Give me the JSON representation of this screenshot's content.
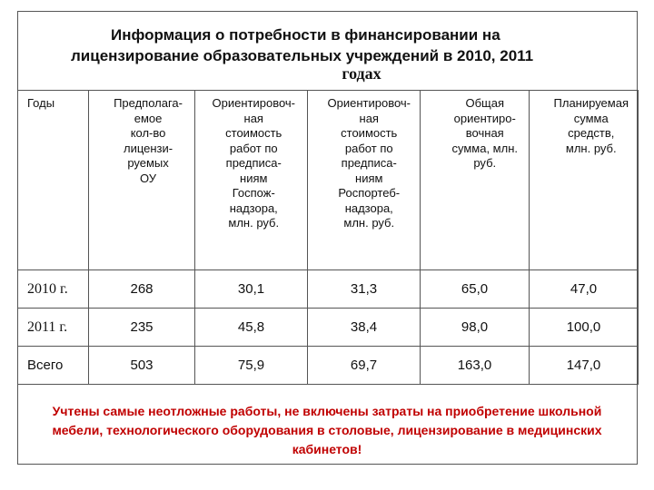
{
  "title": {
    "line1": "Информация о потребности в финансировании на",
    "line2": "лицензирование образовательных учреждений в 2010, 2011",
    "line3": "годах"
  },
  "table": {
    "headers": [
      "Годы",
      "Предполага-\nемое\nкол-во\nлицензи-\nруемых\nОУ",
      "Ориентировоч-\nная\nстоимость\nработ по\nпредписа-\nниям\nГоспож-\nнадзора,\nмлн. руб.",
      "Ориентировоч-\nная\nстоимость\nработ по\nпредписа-\nниям\nРоспортеб-\nнадзора,\nмлн. руб.",
      "Общая\nориентиро-\nвочная\nсумма, млн.\nруб.",
      "Планируемая\nсумма\nсредств,\nмлн. руб."
    ],
    "rows": [
      [
        "2010 г.",
        "268",
        "30,1",
        "31,3",
        "65,0",
        "47,0"
      ],
      [
        "2011 г.",
        "235",
        "45,8",
        "38,4",
        "98,0",
        "100,0"
      ],
      [
        "Всего",
        "503",
        "75,9",
        "69,7",
        "163,0",
        "147,0"
      ]
    ]
  },
  "note": "Учтены самые неотложные работы, не включены затраты на приобретение школьной мебели, технологического оборудования в столовые, лицензирование в медицинских кабинетов!",
  "colors": {
    "note_text": "#c00000",
    "border": "#555555",
    "text": "#111111"
  }
}
